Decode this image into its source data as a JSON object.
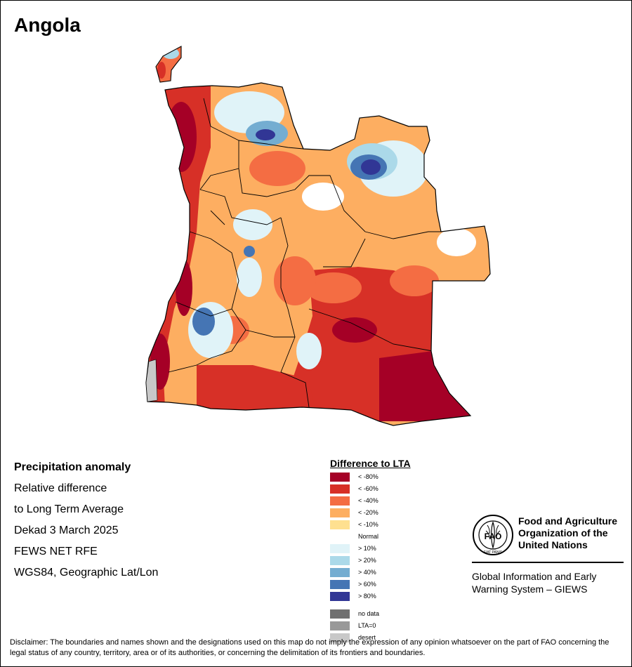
{
  "title": "Angola",
  "info": {
    "heading": "Precipitation anomaly",
    "line1": "Relative difference",
    "line2": "to Long Term Average",
    "period": "Dekad 3 March 2025",
    "source": "FEWS NET RFE",
    "projection": "WGS84, Geographic Lat/Lon"
  },
  "legend": {
    "title": "Difference to LTA",
    "classes": [
      {
        "label": "< -80%",
        "color": "#a50026"
      },
      {
        "label": "< -60%",
        "color": "#d73027"
      },
      {
        "label": "< -40%",
        "color": "#f46d43"
      },
      {
        "label": "< -20%",
        "color": "#fdae61"
      },
      {
        "label": "< -10%",
        "color": "#fee090"
      },
      {
        "label": "Normal",
        "color": "#ffffff"
      },
      {
        "label": "> 10%",
        "color": "#e0f3f8"
      },
      {
        "label": "> 20%",
        "color": "#abd9e9"
      },
      {
        "label": "> 40%",
        "color": "#74add1"
      },
      {
        "label": "> 60%",
        "color": "#4575b4"
      },
      {
        "label": "> 80%",
        "color": "#313695"
      }
    ],
    "special": [
      {
        "label": "no data",
        "color": "#707070"
      },
      {
        "label": "LTA=0",
        "color": "#999999"
      },
      {
        "label": "desert",
        "color": "#c8c8c8"
      }
    ]
  },
  "organization": {
    "name": "Food and Agriculture Organization of the United Nations",
    "logo_text": "FAO",
    "logo_motto": "FIAT PANIS",
    "system": "Global Information and Early Warning System – GIEWS"
  },
  "disclaimer": "Disclaimer: The boundaries and names shown and the designations used on this map do not imply the expression of any opinion whatsoever on the part of FAO concerning the legal status of any country, territory, area or of its authorities, or concerning the delimitation of its frontiers and boundaries."
}
